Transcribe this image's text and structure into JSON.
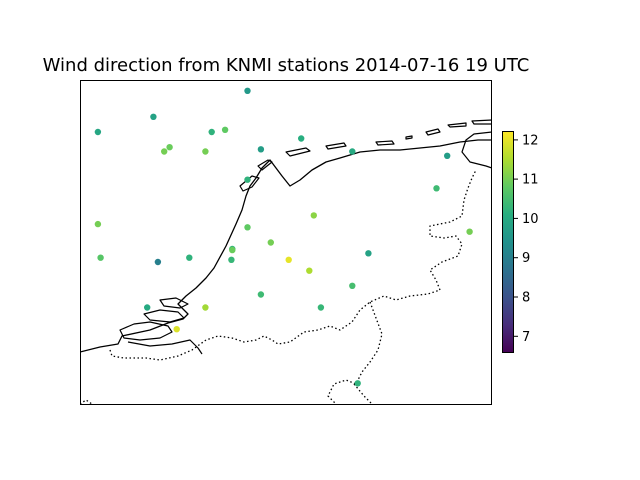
{
  "title": "Wind direction from KNMI stations 2014-07-16 19 UTC",
  "chart_data": {
    "type": "scatter",
    "title": "Wind direction from KNMI stations 2014-07-16 19 UTC",
    "colormap": "viridis",
    "colorbar": {
      "min": 6.6,
      "max": 12.2,
      "ticks": [
        {
          "value": 7,
          "label": "7"
        },
        {
          "value": 8,
          "label": "8"
        },
        {
          "value": 9,
          "label": "9"
        },
        {
          "value": 10,
          "label": "10"
        },
        {
          "value": 11,
          "label": "11"
        },
        {
          "value": 12,
          "label": "12"
        }
      ]
    },
    "extent": {
      "lon_min": 2.8,
      "lon_max": 7.4,
      "lat_min": 50.7,
      "lat_max": 53.7
    },
    "stations": [
      {
        "lon": 4.67,
        "lat": 53.6,
        "value": 9.6
      },
      {
        "lon": 3.62,
        "lat": 53.36,
        "value": 9.8
      },
      {
        "lon": 3.0,
        "lat": 53.22,
        "value": 9.9
      },
      {
        "lon": 4.27,
        "lat": 53.22,
        "value": 10.2
      },
      {
        "lon": 4.42,
        "lat": 53.24,
        "value": 10.8
      },
      {
        "lon": 3.8,
        "lat": 53.08,
        "value": 10.9
      },
      {
        "lon": 3.74,
        "lat": 53.04,
        "value": 11.0
      },
      {
        "lon": 4.2,
        "lat": 53.04,
        "value": 11.0
      },
      {
        "lon": 4.82,
        "lat": 53.06,
        "value": 9.7
      },
      {
        "lon": 5.27,
        "lat": 53.16,
        "value": 10.1
      },
      {
        "lon": 5.84,
        "lat": 53.04,
        "value": 10.0
      },
      {
        "lon": 6.9,
        "lat": 53.0,
        "value": 9.7
      },
      {
        "lon": 4.67,
        "lat": 52.78,
        "value": 10.2
      },
      {
        "lon": 6.78,
        "lat": 52.7,
        "value": 10.4
      },
      {
        "lon": 5.41,
        "lat": 52.45,
        "value": 11.2
      },
      {
        "lon": 3.0,
        "lat": 52.37,
        "value": 11.0
      },
      {
        "lon": 4.67,
        "lat": 52.34,
        "value": 10.8
      },
      {
        "lon": 7.15,
        "lat": 52.3,
        "value": 11.0
      },
      {
        "lon": 4.5,
        "lat": 52.14,
        "value": 10.3
      },
      {
        "lon": 4.5,
        "lat": 52.13,
        "value": 10.9
      },
      {
        "lon": 4.93,
        "lat": 52.2,
        "value": 11.0
      },
      {
        "lon": 6.02,
        "lat": 52.1,
        "value": 9.8
      },
      {
        "lon": 3.03,
        "lat": 52.06,
        "value": 10.7
      },
      {
        "lon": 3.67,
        "lat": 52.02,
        "value": 9.0
      },
      {
        "lon": 4.02,
        "lat": 52.06,
        "value": 10.2
      },
      {
        "lon": 4.49,
        "lat": 52.04,
        "value": 10.3
      },
      {
        "lon": 5.13,
        "lat": 52.04,
        "value": 12.0
      },
      {
        "lon": 5.36,
        "lat": 51.94,
        "value": 11.5
      },
      {
        "lon": 5.84,
        "lat": 51.8,
        "value": 10.5
      },
      {
        "lon": 4.82,
        "lat": 51.72,
        "value": 10.4
      },
      {
        "lon": 3.55,
        "lat": 51.6,
        "value": 10.0
      },
      {
        "lon": 4.2,
        "lat": 51.6,
        "value": 11.4
      },
      {
        "lon": 5.49,
        "lat": 51.6,
        "value": 10.3
      },
      {
        "lon": 3.88,
        "lat": 51.4,
        "value": 11.9
      },
      {
        "lon": 5.9,
        "lat": 50.9,
        "value": 10.2
      }
    ]
  }
}
